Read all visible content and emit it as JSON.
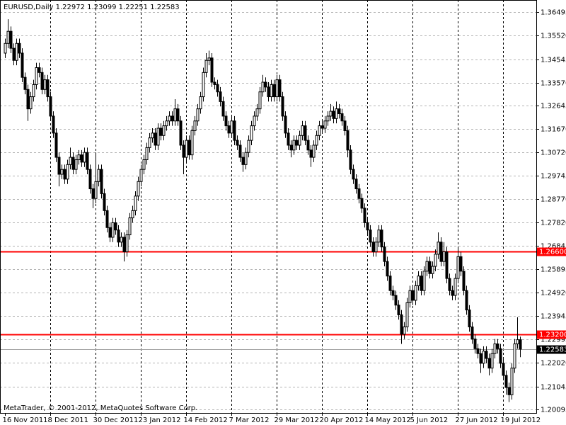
{
  "chart_data": {
    "type": "candlestick",
    "title": "EURUSD,Daily  1.22972 1.23099 1.22251 1.22583",
    "footer": "MetaTrader, © 2001-2012, MetaQuotes Software Corp.",
    "up_color": "#ffffff",
    "down_color": "#000000",
    "outline_color": "#000000",
    "grid": true,
    "ylim": [
      1.19949,
      1.36992
    ],
    "yticks": [
      {
        "value": 1.36495,
        "label": "1.36495"
      },
      {
        "value": 1.3552,
        "label": "1.35520"
      },
      {
        "value": 1.34545,
        "label": "1.34545"
      },
      {
        "value": 1.3357,
        "label": "1.33570"
      },
      {
        "value": 1.32645,
        "label": "1.32645"
      },
      {
        "value": 1.3167,
        "label": "1.31670"
      },
      {
        "value": 1.3072,
        "label": "1.30720"
      },
      {
        "value": 1.29745,
        "label": "1.29745"
      },
      {
        "value": 1.2877,
        "label": "1.28770"
      },
      {
        "value": 1.2782,
        "label": "1.27820"
      },
      {
        "value": 1.26845,
        "label": "1.26845"
      },
      {
        "value": 1.25895,
        "label": "1.25895"
      },
      {
        "value": 1.2492,
        "label": "1.24920"
      },
      {
        "value": 1.23945,
        "label": "1.23945"
      },
      {
        "value": 1.22995,
        "label": "1.22995"
      },
      {
        "value": 1.2202,
        "label": "1.22020"
      },
      {
        "value": 1.21045,
        "label": "1.21045"
      },
      {
        "value": 1.20095,
        "label": "1.20095"
      }
    ],
    "hlines": [
      {
        "value": 1.266,
        "label": "1.26600",
        "color": "#ff0000"
      },
      {
        "value": 1.232,
        "label": "1.23200",
        "color": "#ff0000"
      }
    ],
    "bid": {
      "value": 1.22583,
      "label": "1.22583",
      "color": "#000000"
    },
    "categories": [
      "16 Nov 2011",
      null,
      null,
      null,
      null,
      null,
      null,
      null,
      null,
      null,
      null,
      null,
      null,
      null,
      null,
      null,
      "8 Dec 2011",
      null,
      null,
      null,
      null,
      null,
      null,
      null,
      null,
      null,
      null,
      null,
      null,
      null,
      null,
      null,
      "30 Dec 2011",
      null,
      null,
      null,
      null,
      null,
      null,
      null,
      null,
      null,
      null,
      null,
      null,
      null,
      null,
      null,
      "23 Jan 2012",
      null,
      null,
      null,
      null,
      null,
      null,
      null,
      null,
      null,
      null,
      null,
      null,
      null,
      null,
      null,
      "14 Feb 2012",
      null,
      null,
      null,
      null,
      null,
      null,
      null,
      null,
      null,
      null,
      null,
      null,
      null,
      null,
      null,
      "7 Mar 2012",
      null,
      null,
      null,
      null,
      null,
      null,
      null,
      null,
      null,
      null,
      null,
      null,
      null,
      null,
      null,
      "29 Mar 2012",
      null,
      null,
      null,
      null,
      null,
      null,
      null,
      null,
      null,
      null,
      null,
      null,
      null,
      null,
      null,
      "20 Apr 2012",
      null,
      null,
      null,
      null,
      null,
      null,
      null,
      null,
      null,
      null,
      null,
      null,
      null,
      null,
      null,
      "14 May 2012",
      null,
      null,
      null,
      null,
      null,
      null,
      null,
      null,
      null,
      null,
      null,
      null,
      null,
      null,
      null,
      "5 Jun 2012",
      null,
      null,
      null,
      null,
      null,
      null,
      null,
      null,
      null,
      null,
      null,
      null,
      null,
      null,
      null,
      "27 Jun 2012",
      null,
      null,
      null,
      null,
      null,
      null,
      null,
      null,
      null,
      null,
      null,
      null,
      null,
      null,
      null,
      "19 Jul 2012",
      null,
      null,
      null,
      null,
      null,
      null
    ],
    "ohlc": [
      [
        1.348,
        1.354,
        1.346,
        1.352
      ],
      [
        1.352,
        1.362,
        1.35,
        1.357
      ],
      [
        1.357,
        1.359,
        1.348,
        1.35
      ],
      [
        1.35,
        1.352,
        1.343,
        1.345
      ],
      [
        1.345,
        1.354,
        1.343,
        1.352
      ],
      [
        1.352,
        1.354,
        1.346,
        1.348
      ],
      [
        1.348,
        1.35,
        1.336,
        1.338
      ],
      [
        1.338,
        1.34,
        1.331,
        1.333
      ],
      [
        1.333,
        1.335,
        1.32,
        1.325
      ],
      [
        1.325,
        1.332,
        1.323,
        1.33
      ],
      [
        1.33,
        1.337,
        1.328,
        1.335
      ],
      [
        1.335,
        1.344,
        1.333,
        1.342
      ],
      [
        1.342,
        1.344,
        1.338,
        1.34
      ],
      [
        1.34,
        1.342,
        1.331,
        1.333
      ],
      [
        1.333,
        1.339,
        1.331,
        1.337
      ],
      [
        1.337,
        1.339,
        1.328,
        1.33
      ],
      [
        1.33,
        1.332,
        1.32,
        1.322
      ],
      [
        1.322,
        1.324,
        1.313,
        1.315
      ],
      [
        1.315,
        1.317,
        1.303,
        1.305
      ],
      [
        1.305,
        1.307,
        1.293,
        1.298
      ],
      [
        1.298,
        1.302,
        1.296,
        1.3
      ],
      [
        1.3,
        1.302,
        1.294,
        1.296
      ],
      [
        1.296,
        1.304,
        1.294,
        1.302
      ],
      [
        1.302,
        1.309,
        1.3,
        1.305
      ],
      [
        1.305,
        1.307,
        1.298,
        1.3
      ],
      [
        1.3,
        1.306,
        1.298,
        1.304
      ],
      [
        1.304,
        1.308,
        1.302,
        1.306
      ],
      [
        1.306,
        1.308,
        1.301,
        1.303
      ],
      [
        1.303,
        1.309,
        1.301,
        1.307
      ],
      [
        1.307,
        1.309,
        1.298,
        1.3
      ],
      [
        1.3,
        1.302,
        1.29,
        1.292
      ],
      [
        1.292,
        1.294,
        1.284,
        1.288
      ],
      [
        1.288,
        1.307,
        1.286,
        1.295
      ],
      [
        1.295,
        1.302,
        1.293,
        1.3
      ],
      [
        1.3,
        1.302,
        1.288,
        1.29
      ],
      [
        1.29,
        1.292,
        1.281,
        1.283
      ],
      [
        1.283,
        1.285,
        1.274,
        1.276
      ],
      [
        1.276,
        1.278,
        1.27,
        1.272
      ],
      [
        1.272,
        1.28,
        1.27,
        1.278
      ],
      [
        1.278,
        1.28,
        1.273,
        1.275
      ],
      [
        1.275,
        1.277,
        1.268,
        1.27
      ],
      [
        1.27,
        1.274,
        1.268,
        1.272
      ],
      [
        1.272,
        1.274,
        1.262,
        1.266
      ],
      [
        1.266,
        1.275,
        1.264,
        1.273
      ],
      [
        1.273,
        1.282,
        1.271,
        1.28
      ],
      [
        1.28,
        1.285,
        1.278,
        1.283
      ],
      [
        1.283,
        1.291,
        1.281,
        1.289
      ],
      [
        1.289,
        1.297,
        1.287,
        1.295
      ],
      [
        1.295,
        1.302,
        1.293,
        1.3
      ],
      [
        1.3,
        1.306,
        1.298,
        1.304
      ],
      [
        1.304,
        1.311,
        1.302,
        1.309
      ],
      [
        1.309,
        1.315,
        1.307,
        1.313
      ],
      [
        1.313,
        1.317,
        1.311,
        1.315
      ],
      [
        1.315,
        1.317,
        1.308,
        1.31
      ],
      [
        1.31,
        1.319,
        1.308,
        1.317
      ],
      [
        1.317,
        1.319,
        1.312,
        1.314
      ],
      [
        1.314,
        1.32,
        1.312,
        1.318
      ],
      [
        1.318,
        1.322,
        1.316,
        1.32
      ],
      [
        1.32,
        1.324,
        1.318,
        1.322
      ],
      [
        1.322,
        1.324,
        1.318,
        1.32
      ],
      [
        1.32,
        1.329,
        1.318,
        1.325
      ],
      [
        1.325,
        1.327,
        1.318,
        1.32
      ],
      [
        1.32,
        1.322,
        1.308,
        1.31
      ],
      [
        1.31,
        1.312,
        1.298,
        1.305
      ],
      [
        1.305,
        1.314,
        1.303,
        1.312
      ],
      [
        1.312,
        1.314,
        1.304,
        1.306
      ],
      [
        1.306,
        1.318,
        1.304,
        1.316
      ],
      [
        1.316,
        1.322,
        1.314,
        1.32
      ],
      [
        1.32,
        1.327,
        1.318,
        1.325
      ],
      [
        1.325,
        1.332,
        1.323,
        1.33
      ],
      [
        1.33,
        1.342,
        1.328,
        1.34
      ],
      [
        1.34,
        1.348,
        1.338,
        1.345
      ],
      [
        1.345,
        1.349,
        1.343,
        1.346
      ],
      [
        1.346,
        1.348,
        1.334,
        1.336
      ],
      [
        1.336,
        1.338,
        1.333,
        1.335
      ],
      [
        1.335,
        1.337,
        1.33,
        1.332
      ],
      [
        1.332,
        1.334,
        1.326,
        1.328
      ],
      [
        1.328,
        1.33,
        1.32,
        1.322
      ],
      [
        1.322,
        1.324,
        1.316,
        1.318
      ],
      [
        1.318,
        1.32,
        1.313,
        1.315
      ],
      [
        1.315,
        1.322,
        1.313,
        1.32
      ],
      [
        1.32,
        1.322,
        1.31,
        1.312
      ],
      [
        1.312,
        1.314,
        1.308,
        1.31
      ],
      [
        1.31,
        1.312,
        1.303,
        1.305
      ],
      [
        1.305,
        1.307,
        1.299,
        1.302
      ],
      [
        1.302,
        1.309,
        1.3,
        1.307
      ],
      [
        1.307,
        1.314,
        1.305,
        1.312
      ],
      [
        1.312,
        1.32,
        1.31,
        1.318
      ],
      [
        1.318,
        1.324,
        1.316,
        1.322
      ],
      [
        1.322,
        1.327,
        1.32,
        1.325
      ],
      [
        1.325,
        1.334,
        1.323,
        1.332
      ],
      [
        1.332,
        1.339,
        1.33,
        1.336
      ],
      [
        1.336,
        1.338,
        1.332,
        1.334
      ],
      [
        1.334,
        1.336,
        1.328,
        1.33
      ],
      [
        1.33,
        1.337,
        1.328,
        1.335
      ],
      [
        1.335,
        1.337,
        1.328,
        1.33
      ],
      [
        1.33,
        1.339,
        1.328,
        1.337
      ],
      [
        1.337,
        1.339,
        1.328,
        1.33
      ],
      [
        1.33,
        1.332,
        1.32,
        1.322
      ],
      [
        1.322,
        1.324,
        1.313,
        1.315
      ],
      [
        1.315,
        1.317,
        1.308,
        1.31
      ],
      [
        1.31,
        1.312,
        1.305,
        1.308
      ],
      [
        1.308,
        1.314,
        1.306,
        1.312
      ],
      [
        1.312,
        1.314,
        1.308,
        1.31
      ],
      [
        1.31,
        1.316,
        1.308,
        1.314
      ],
      [
        1.314,
        1.32,
        1.312,
        1.318
      ],
      [
        1.318,
        1.32,
        1.31,
        1.312
      ],
      [
        1.312,
        1.314,
        1.306,
        1.308
      ],
      [
        1.308,
        1.31,
        1.301,
        1.305
      ],
      [
        1.305,
        1.312,
        1.303,
        1.31
      ],
      [
        1.31,
        1.316,
        1.308,
        1.314
      ],
      [
        1.314,
        1.32,
        1.312,
        1.318
      ],
      [
        1.318,
        1.32,
        1.315,
        1.317
      ],
      [
        1.317,
        1.322,
        1.315,
        1.32
      ],
      [
        1.32,
        1.324,
        1.318,
        1.322
      ],
      [
        1.322,
        1.327,
        1.32,
        1.324
      ],
      [
        1.324,
        1.326,
        1.319,
        1.321
      ],
      [
        1.321,
        1.328,
        1.319,
        1.325
      ],
      [
        1.325,
        1.327,
        1.321,
        1.323
      ],
      [
        1.323,
        1.325,
        1.318,
        1.32
      ],
      [
        1.32,
        1.322,
        1.314,
        1.316
      ],
      [
        1.316,
        1.318,
        1.305,
        1.308
      ],
      [
        1.308,
        1.31,
        1.298,
        1.3
      ],
      [
        1.3,
        1.302,
        1.294,
        1.296
      ],
      [
        1.296,
        1.298,
        1.29,
        1.292
      ],
      [
        1.292,
        1.294,
        1.286,
        1.288
      ],
      [
        1.288,
        1.29,
        1.282,
        1.284
      ],
      [
        1.284,
        1.286,
        1.276,
        1.278
      ],
      [
        1.278,
        1.28,
        1.273,
        1.275
      ],
      [
        1.275,
        1.277,
        1.268,
        1.27
      ],
      [
        1.27,
        1.272,
        1.264,
        1.266
      ],
      [
        1.266,
        1.272,
        1.264,
        1.27
      ],
      [
        1.27,
        1.277,
        1.268,
        1.275
      ],
      [
        1.275,
        1.277,
        1.266,
        1.268
      ],
      [
        1.268,
        1.27,
        1.26,
        1.262
      ],
      [
        1.262,
        1.264,
        1.254,
        1.256
      ],
      [
        1.256,
        1.258,
        1.248,
        1.25
      ],
      [
        1.25,
        1.252,
        1.246,
        1.248
      ],
      [
        1.248,
        1.25,
        1.242,
        1.244
      ],
      [
        1.244,
        1.246,
        1.238,
        1.24
      ],
      [
        1.24,
        1.242,
        1.228,
        1.232
      ],
      [
        1.232,
        1.237,
        1.23,
        1.235
      ],
      [
        1.235,
        1.247,
        1.233,
        1.245
      ],
      [
        1.245,
        1.252,
        1.243,
        1.25
      ],
      [
        1.25,
        1.252,
        1.244,
        1.246
      ],
      [
        1.246,
        1.254,
        1.244,
        1.252
      ],
      [
        1.252,
        1.258,
        1.25,
        1.256
      ],
      [
        1.256,
        1.258,
        1.248,
        1.25
      ],
      [
        1.25,
        1.26,
        1.248,
        1.258
      ],
      [
        1.258,
        1.264,
        1.256,
        1.262
      ],
      [
        1.262,
        1.264,
        1.255,
        1.257
      ],
      [
        1.257,
        1.262,
        1.255,
        1.26
      ],
      [
        1.26,
        1.267,
        1.258,
        1.265
      ],
      [
        1.265,
        1.274,
        1.263,
        1.27
      ],
      [
        1.27,
        1.272,
        1.26,
        1.262
      ],
      [
        1.262,
        1.27,
        1.26,
        1.266
      ],
      [
        1.266,
        1.268,
        1.253,
        1.255
      ],
      [
        1.255,
        1.257,
        1.248,
        1.25
      ],
      [
        1.25,
        1.252,
        1.246,
        1.248
      ],
      [
        1.248,
        1.257,
        1.246,
        1.255
      ],
      [
        1.255,
        1.268,
        1.253,
        1.264
      ],
      [
        1.264,
        1.266,
        1.256,
        1.258
      ],
      [
        1.258,
        1.26,
        1.248,
        1.25
      ],
      [
        1.25,
        1.252,
        1.24,
        1.242
      ],
      [
        1.242,
        1.244,
        1.233,
        1.235
      ],
      [
        1.235,
        1.237,
        1.228,
        1.23
      ],
      [
        1.23,
        1.232,
        1.224,
        1.226
      ],
      [
        1.226,
        1.228,
        1.222,
        1.224
      ],
      [
        1.224,
        1.226,
        1.216,
        1.22
      ],
      [
        1.22,
        1.227,
        1.218,
        1.225
      ],
      [
        1.225,
        1.227,
        1.22,
        1.222
      ],
      [
        1.222,
        1.224,
        1.215,
        1.218
      ],
      [
        1.218,
        1.226,
        1.216,
        1.224
      ],
      [
        1.224,
        1.23,
        1.222,
        1.228
      ],
      [
        1.228,
        1.23,
        1.224,
        1.226
      ],
      [
        1.226,
        1.228,
        1.218,
        1.22
      ],
      [
        1.22,
        1.222,
        1.213,
        1.215
      ],
      [
        1.215,
        1.217,
        1.207,
        1.21
      ],
      [
        1.21,
        1.212,
        1.204,
        1.207
      ],
      [
        1.207,
        1.22,
        1.205,
        1.218
      ],
      [
        1.218,
        1.23,
        1.216,
        1.228
      ],
      [
        1.228,
        1.239,
        1.226,
        1.22972
      ],
      [
        1.22972,
        1.23099,
        1.22251,
        1.22583
      ]
    ]
  }
}
